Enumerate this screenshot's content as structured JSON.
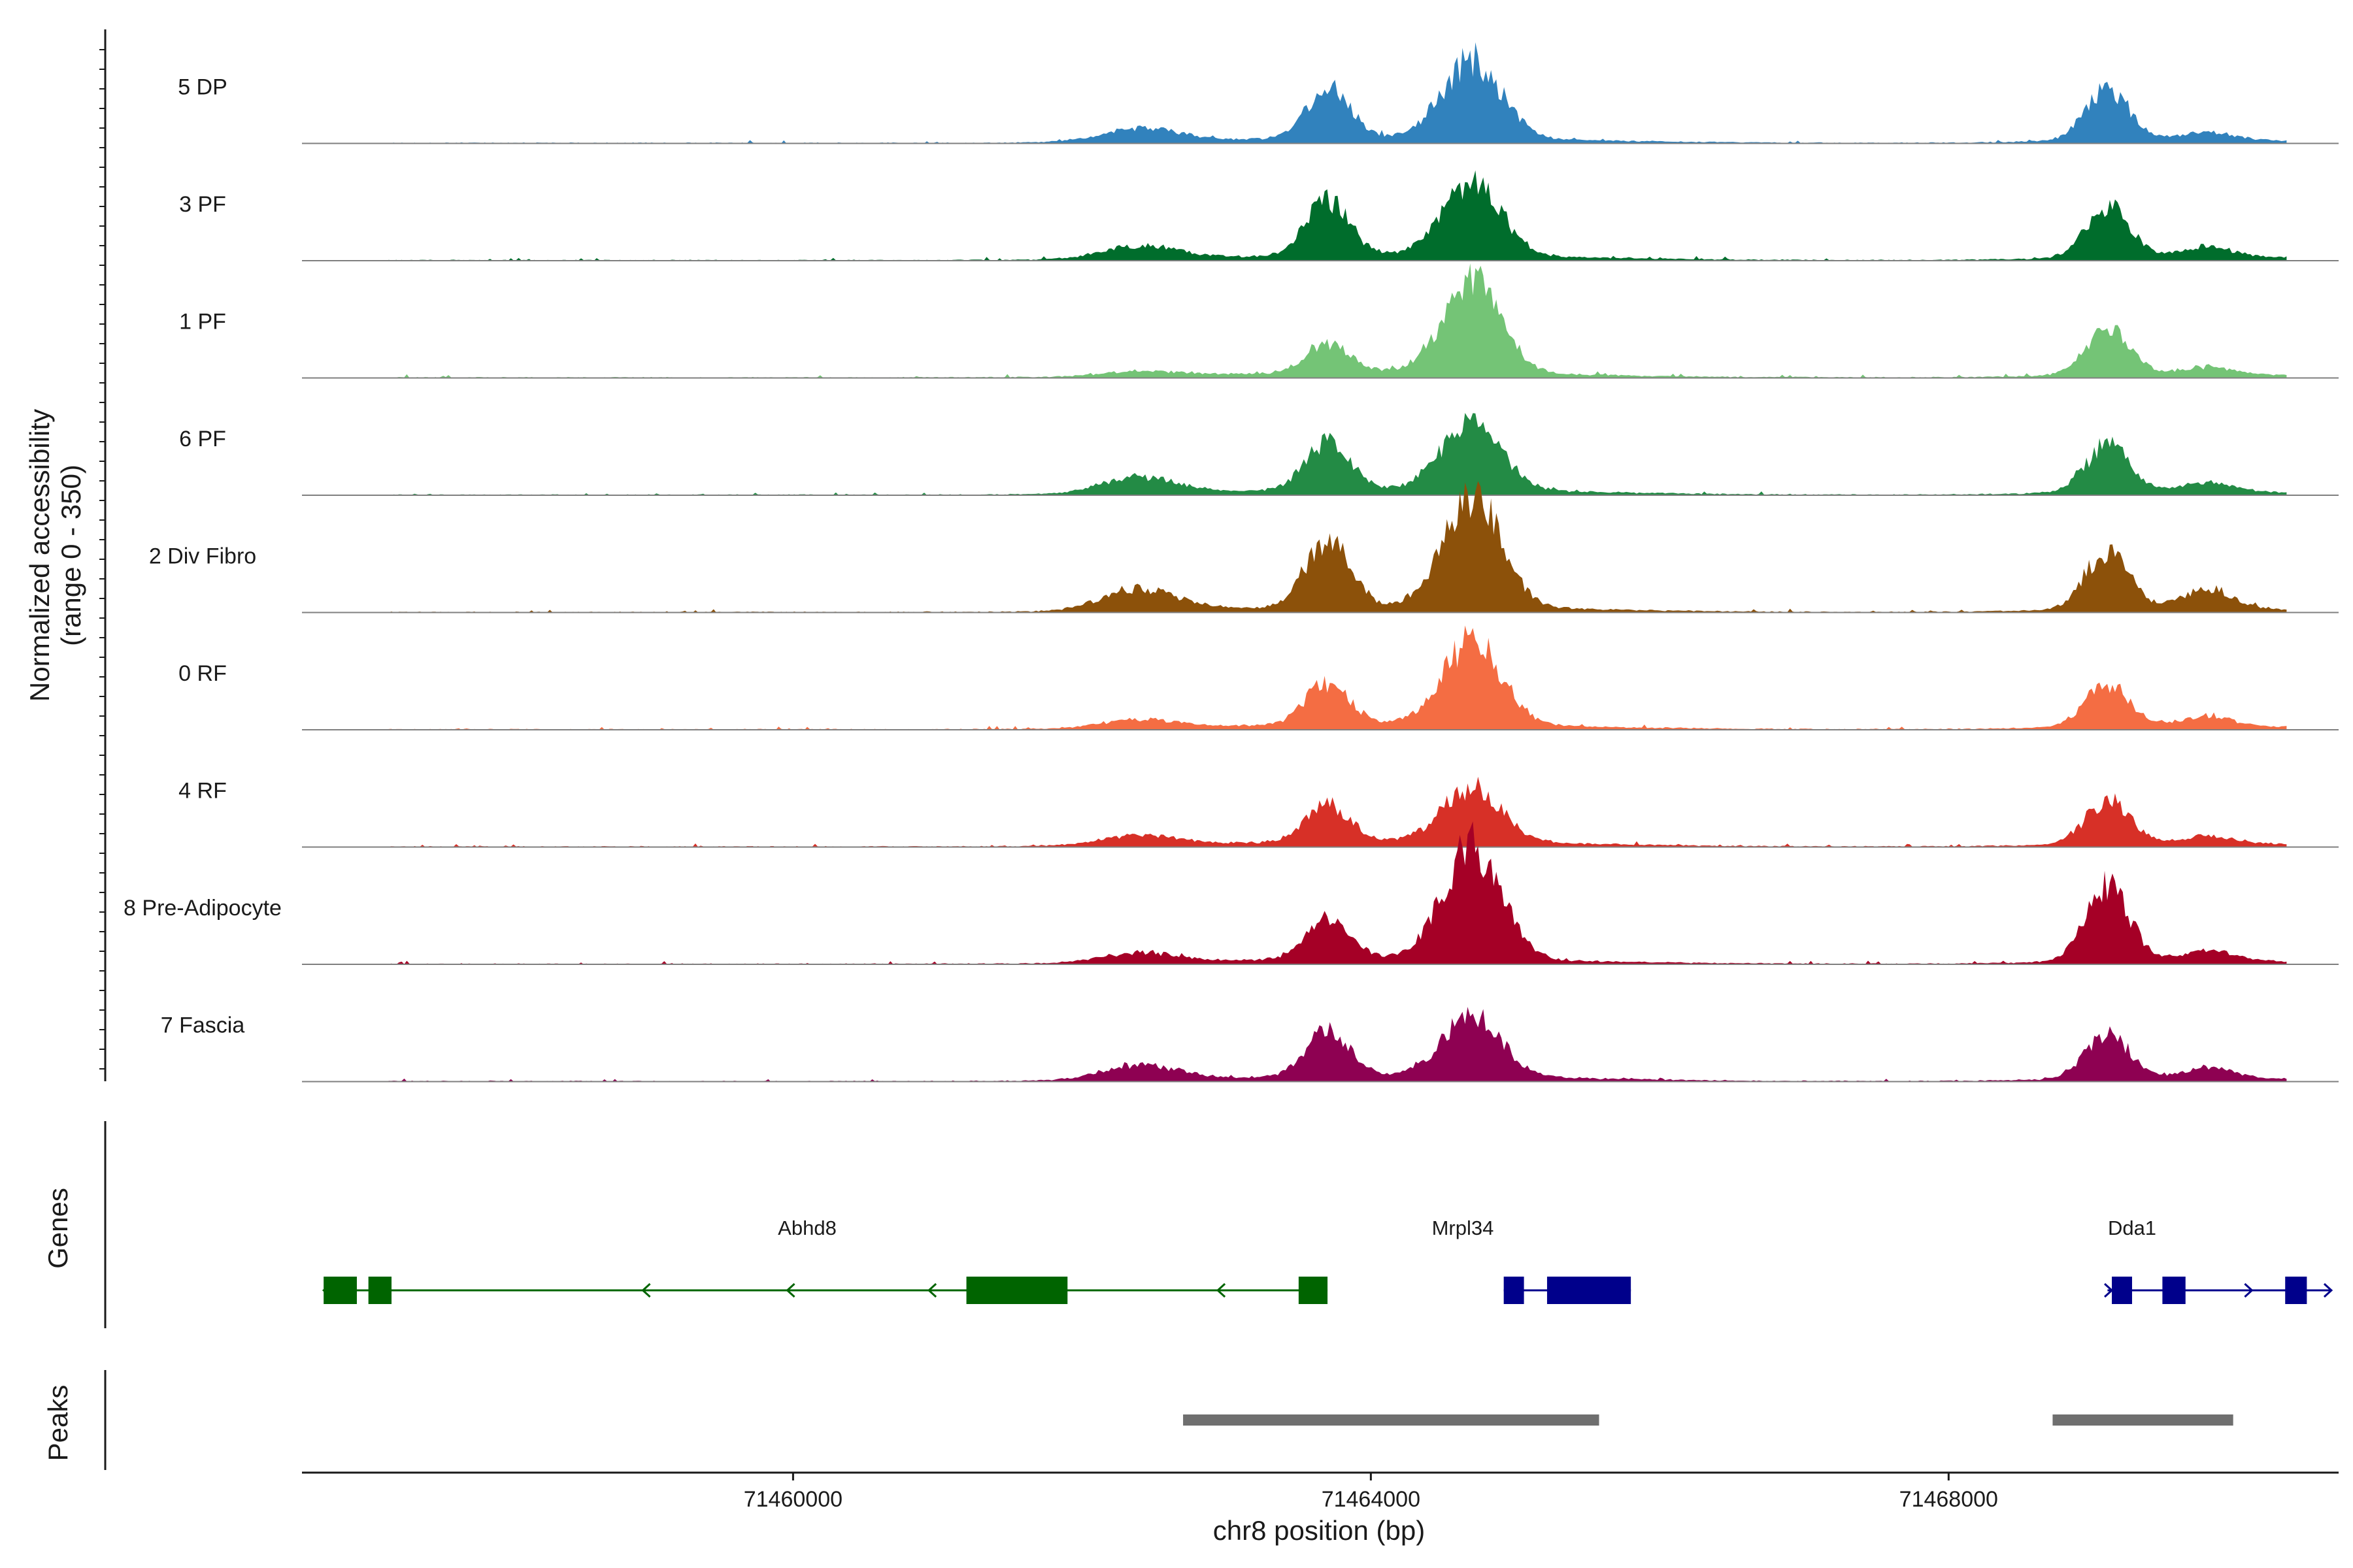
{
  "chart_data": {
    "type": "area",
    "title": "",
    "region": "chr8",
    "xlabel": "chr8 position (bp)",
    "ylabel_line1": "Normalized accessibility",
    "ylabel_line2": "(range 0 - 350)",
    "xlim": [
      71456600,
      71470700
    ],
    "ylim": [
      0,
      350
    ],
    "x_ticks": [
      71460000,
      71464000,
      71468000
    ],
    "x_tick_labels": [
      "71460000",
      "71464000",
      "71468000"
    ],
    "panel_titles": {
      "genes": "Genes",
      "peaks": "Peaks"
    },
    "tracks": [
      {
        "name": "5 DP",
        "color": "#3182bd"
      },
      {
        "name": "3 PF",
        "color": "#006d2c"
      },
      {
        "name": "1 PF",
        "color": "#74c476"
      },
      {
        "name": "6 PF",
        "color": "#238b45"
      },
      {
        "name": "2 Div Fibro",
        "color": "#8c510a"
      },
      {
        "name": "0 RF",
        "color": "#f46d43"
      },
      {
        "name": "4 RF",
        "color": "#d73027"
      },
      {
        "name": "8 Pre-Adipocyte",
        "color": "#a50026"
      },
      {
        "name": "7 Fascia",
        "color": "#8e0152"
      }
    ],
    "peak_shape": {
      "centers": [
        71462400,
        71463700,
        71464700,
        71469100,
        71469800
      ],
      "widths": [
        260,
        150,
        200,
        150,
        160
      ],
      "heights": [
        [
          8,
          30,
          47,
          30,
          4
        ],
        [
          8,
          32,
          43,
          30,
          6
        ],
        [
          3,
          18,
          55,
          28,
          4
        ],
        [
          10,
          29,
          42,
          28,
          5
        ],
        [
          13,
          41,
          66,
          35,
          12
        ],
        [
          5,
          25,
          50,
          26,
          6
        ],
        [
          6,
          23,
          32,
          26,
          4
        ],
        [
          6,
          25,
          68,
          45,
          6
        ],
        [
          9,
          27,
          37,
          26,
          6
        ]
      ]
    },
    "genes": [
      {
        "name": "Abhd8",
        "strand": "-",
        "color": "#006400",
        "start": 71456750,
        "end": 71463700,
        "exons": [
          [
            71456750,
            71456980
          ],
          [
            71457060,
            71457220
          ],
          [
            71461200,
            71461900
          ],
          [
            71463500,
            71463700
          ]
        ],
        "arrows": [
          71456750,
          71458960,
          71459960,
          71460940,
          71462940
        ]
      },
      {
        "name": "Mrpl34",
        "strand": "+",
        "color": "#00008b",
        "start": 71464920,
        "end": 71465800,
        "exons": [
          [
            71464920,
            71465060
          ],
          [
            71465220,
            71465800
          ]
        ],
        "arrows": []
      },
      {
        "name": "Dda1",
        "strand": "+",
        "color": "#00008b",
        "start": 71469100,
        "end": 71470650,
        "exons": [
          [
            71469130,
            71469270
          ],
          [
            71469480,
            71469640
          ],
          [
            71470330,
            71470480
          ]
        ],
        "arrows": [
          71469130,
          71470100,
          71470650
        ]
      }
    ],
    "peaks": [
      [
        71462700,
        71465580
      ],
      [
        71468720,
        71469970
      ]
    ]
  }
}
